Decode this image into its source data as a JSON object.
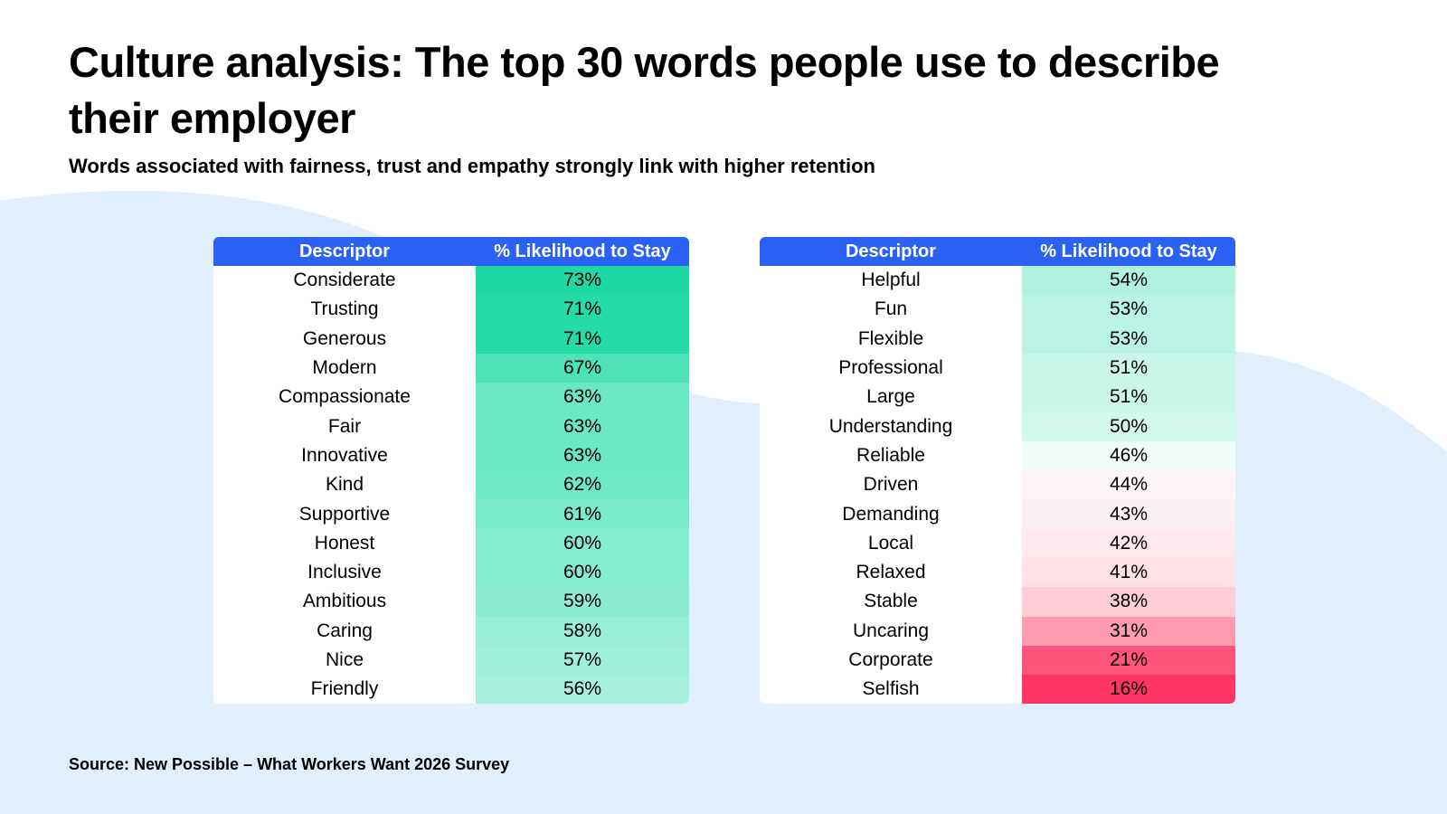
{
  "title": "Culture analysis: The top 30 words people use to describe their employer",
  "subtitle": "Words associated with fairness, trust and empathy strongly link with higher retention",
  "source": "Source: New Possible – What Workers Want 2026 Survey",
  "colors": {
    "header": "#2b62f5",
    "background_blob": "#e1eefc"
  },
  "tables": [
    {
      "headers": [
        "Descriptor",
        "% Likelihood to Stay"
      ],
      "rows": [
        {
          "word": "Considerate",
          "value": "73%",
          "color": "#1dd9a3"
        },
        {
          "word": "Trusting",
          "value": "71%",
          "color": "#25dba8"
        },
        {
          "word": "Generous",
          "value": "71%",
          "color": "#25dba8"
        },
        {
          "word": "Modern",
          "value": "67%",
          "color": "#4de3b7"
        },
        {
          "word": "Compassionate",
          "value": "63%",
          "color": "#6ae8c3"
        },
        {
          "word": "Fair",
          "value": "63%",
          "color": "#6ae8c3"
        },
        {
          "word": "Innovative",
          "value": "63%",
          "color": "#6ae8c3"
        },
        {
          "word": "Kind",
          "value": "62%",
          "color": "#6fe8c5"
        },
        {
          "word": "Supportive",
          "value": "61%",
          "color": "#79eac8"
        },
        {
          "word": "Honest",
          "value": "60%",
          "color": "#84ecce"
        },
        {
          "word": "Inclusive",
          "value": "60%",
          "color": "#84ecce"
        },
        {
          "word": "Ambitious",
          "value": "59%",
          "color": "#8cedd1"
        },
        {
          "word": "Caring",
          "value": "58%",
          "color": "#97efd6"
        },
        {
          "word": "Nice",
          "value": "57%",
          "color": "#9ff0da"
        },
        {
          "word": "Friendly",
          "value": "56%",
          "color": "#a6f1dd"
        }
      ]
    },
    {
      "headers": [
        "Descriptor",
        "% Likelihood to Stay"
      ],
      "rows": [
        {
          "word": "Helpful",
          "value": "54%",
          "color": "#b0f2e0"
        },
        {
          "word": "Fun",
          "value": "53%",
          "color": "#b8f3e4"
        },
        {
          "word": "Flexible",
          "value": "53%",
          "color": "#b8f3e4"
        },
        {
          "word": "Professional",
          "value": "51%",
          "color": "#c9f6e9"
        },
        {
          "word": "Large",
          "value": "51%",
          "color": "#c9f6e9"
        },
        {
          "word": "Understanding",
          "value": "50%",
          "color": "#d2f7ec"
        },
        {
          "word": "Reliable",
          "value": "46%",
          "color": "#f2fcf8"
        },
        {
          "word": "Driven",
          "value": "44%",
          "color": "#fdf5f7"
        },
        {
          "word": "Demanding",
          "value": "43%",
          "color": "#fdf1f3"
        },
        {
          "word": "Local",
          "value": "42%",
          "color": "#fde8ed"
        },
        {
          "word": "Relaxed",
          "value": "41%",
          "color": "#fde1e7"
        },
        {
          "word": "Stable",
          "value": "38%",
          "color": "#ffccd8"
        },
        {
          "word": "Uncaring",
          "value": "31%",
          "color": "#fe9bb0"
        },
        {
          "word": "Corporate",
          "value": "21%",
          "color": "#ff557c"
        },
        {
          "word": "Selfish",
          "value": "16%",
          "color": "#ff3566"
        }
      ]
    }
  ]
}
